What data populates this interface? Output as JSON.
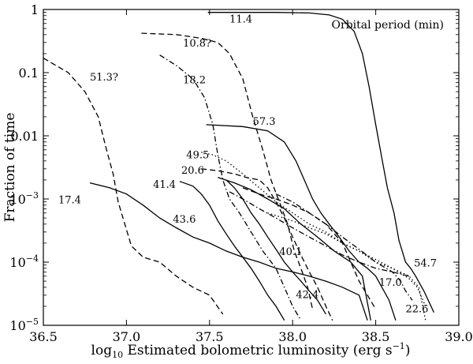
{
  "chart_data": {
    "type": "line",
    "xlabel_parts": [
      "log",
      "10",
      " Estimated bolometric luminosity (erg s",
      "−1",
      ")"
    ],
    "ylabel": "Fraction of time",
    "legend_title": "Orbital period (min)",
    "xlim": [
      36.5,
      39.0
    ],
    "ylim": [
      1e-05,
      1
    ],
    "y_scale": "log",
    "x_ticks": [
      {
        "value": 36.5,
        "label": "36.5"
      },
      {
        "value": 37.0,
        "label": "37.0"
      },
      {
        "value": 37.5,
        "label": "37.5"
      },
      {
        "value": 38.0,
        "label": "38.0"
      },
      {
        "value": 38.5,
        "label": "38.5"
      },
      {
        "value": 39.0,
        "label": "39.0"
      }
    ],
    "y_ticks": [
      {
        "value": 1,
        "base": "1",
        "exp": ""
      },
      {
        "value": 0.1,
        "base": "0.1",
        "exp": ""
      },
      {
        "value": 0.01,
        "base": "0.01",
        "exp": ""
      },
      {
        "value": 0.001,
        "base": "10",
        "exp": "−3"
      },
      {
        "value": 0.0001,
        "base": "10",
        "exp": "−4"
      },
      {
        "value": 1e-05,
        "base": "10",
        "exp": "−5"
      }
    ],
    "series": [
      {
        "name": "11.4",
        "dash": "solid",
        "label_at": [
          37.62,
          0.62
        ],
        "points": [
          [
            37.49,
            0.9
          ],
          [
            37.9,
            0.9
          ],
          [
            38.1,
            0.88
          ],
          [
            38.22,
            0.82
          ],
          [
            38.3,
            0.7
          ],
          [
            38.37,
            0.45
          ],
          [
            38.42,
            0.2
          ],
          [
            38.46,
            0.06
          ],
          [
            38.5,
            0.015
          ],
          [
            38.54,
            0.004
          ],
          [
            38.57,
            0.0015
          ],
          [
            38.61,
            0.0006
          ],
          [
            38.64,
            0.00022
          ],
          [
            38.68,
            0.0001
          ],
          [
            38.71,
            8e-05
          ],
          [
            38.74,
            6e-05
          ],
          [
            38.79,
            3.5e-05
          ],
          [
            38.85,
            1.6e-05
          ]
        ]
      },
      {
        "name": "10.8?",
        "dash": "dashed",
        "label_at": [
          37.34,
          0.26
        ],
        "points": [
          [
            37.09,
            0.42
          ],
          [
            37.3,
            0.4
          ],
          [
            37.45,
            0.35
          ],
          [
            37.55,
            0.3
          ],
          [
            37.62,
            0.2
          ],
          [
            37.7,
            0.08
          ],
          [
            37.76,
            0.02
          ],
          [
            37.82,
            0.006
          ],
          [
            37.87,
            0.002
          ],
          [
            37.92,
            0.0009
          ],
          [
            37.97,
            0.0004
          ],
          [
            38.01,
            0.00015
          ],
          [
            38.05,
            8e-05
          ],
          [
            38.09,
            4e-05
          ],
          [
            38.12,
            1.8e-05
          ]
        ]
      },
      {
        "name": "51.3?",
        "dash": "dashed",
        "label_at": [
          36.78,
          0.075
        ],
        "points": [
          [
            36.5,
            0.17
          ],
          [
            36.65,
            0.1
          ],
          [
            36.75,
            0.05
          ],
          [
            36.83,
            0.02
          ],
          [
            36.88,
            0.006
          ],
          [
            36.92,
            0.0025
          ],
          [
            36.95,
            0.0009
          ],
          [
            36.99,
            0.0004
          ],
          [
            37.03,
            0.00018
          ],
          [
            37.1,
            0.00012
          ],
          [
            37.2,
            0.0001
          ],
          [
            37.3,
            6e-05
          ],
          [
            37.4,
            4e-05
          ],
          [
            37.5,
            3e-05
          ],
          [
            37.58,
            1.5e-05
          ]
        ]
      },
      {
        "name": "18.2",
        "dash": "dashdot",
        "label_at": [
          37.34,
          0.068
        ],
        "points": [
          [
            37.2,
            0.19
          ],
          [
            37.3,
            0.13
          ],
          [
            37.4,
            0.08
          ],
          [
            37.47,
            0.04
          ],
          [
            37.52,
            0.015
          ],
          [
            37.55,
            0.005
          ],
          [
            37.58,
            0.002
          ],
          [
            37.62,
            0.001
          ],
          [
            37.68,
            0.0006
          ],
          [
            37.75,
            0.0003
          ],
          [
            37.82,
            0.00015
          ],
          [
            37.9,
            8e-05
          ],
          [
            37.95,
            4e-05
          ],
          [
            38.0,
            2e-05
          ],
          [
            38.05,
            1.2e-05
          ]
        ]
      },
      {
        "name": "57.3",
        "dash": "solid",
        "label_at": [
          37.76,
          0.015
        ],
        "points": [
          [
            37.48,
            0.015
          ],
          [
            37.7,
            0.014
          ],
          [
            37.85,
            0.012
          ],
          [
            37.95,
            0.008
          ],
          [
            38.02,
            0.004
          ],
          [
            38.07,
            0.002
          ],
          [
            38.12,
            0.001
          ],
          [
            38.17,
            0.0006
          ],
          [
            38.22,
            0.0004
          ],
          [
            38.28,
            0.00025
          ],
          [
            38.34,
            0.00015
          ],
          [
            38.4,
            0.0001
          ],
          [
            38.45,
            8e-05
          ],
          [
            38.5,
            6e-05
          ],
          [
            38.58,
            2.5e-05
          ],
          [
            38.62,
            1.2e-05
          ]
        ]
      },
      {
        "name": "49.5",
        "dash": "dotted",
        "label_at": [
          37.36,
          0.0044
        ],
        "points": [
          [
            37.45,
            0.0055
          ],
          [
            37.52,
            0.005
          ],
          [
            37.6,
            0.004
          ],
          [
            37.7,
            0.0025
          ],
          [
            37.8,
            0.0015
          ],
          [
            37.9,
            0.0009
          ],
          [
            38.0,
            0.0006
          ],
          [
            38.1,
            0.0004
          ],
          [
            38.2,
            0.0003
          ],
          [
            38.3,
            0.0002
          ],
          [
            38.4,
            0.00015
          ],
          [
            38.5,
            0.0001
          ],
          [
            38.6,
            8e-05
          ],
          [
            38.7,
            6e-05
          ],
          [
            38.76,
            4e-05
          ],
          [
            38.8,
            1.2e-05
          ]
        ]
      },
      {
        "name": "20.6",
        "dash": "dashed",
        "label_at": [
          37.33,
          0.0025
        ],
        "points": [
          [
            37.45,
            0.003
          ],
          [
            37.55,
            0.0028
          ],
          [
            37.65,
            0.0025
          ],
          [
            37.72,
            0.0022
          ],
          [
            37.8,
            0.002
          ],
          [
            37.85,
            0.0015
          ],
          [
            37.9,
            0.0009
          ],
          [
            37.95,
            0.0005
          ],
          [
            38.0,
            0.00025
          ],
          [
            38.05,
            0.00013
          ],
          [
            38.1,
            7e-05
          ],
          [
            38.15,
            4e-05
          ],
          [
            38.2,
            2e-05
          ],
          [
            38.24,
            1.2e-05
          ]
        ]
      },
      {
        "name": "41.4",
        "dash": "solid",
        "label_at": [
          37.16,
          0.0015
        ],
        "points": [
          [
            37.32,
            0.0019
          ],
          [
            37.4,
            0.0016
          ],
          [
            37.45,
            0.0012
          ],
          [
            37.5,
            0.0008
          ],
          [
            37.55,
            0.00045
          ],
          [
            37.6,
            0.00028
          ],
          [
            37.65,
            0.00018
          ],
          [
            37.7,
            0.00012
          ],
          [
            37.75,
            8e-05
          ],
          [
            37.8,
            5e-05
          ],
          [
            37.85,
            3e-05
          ],
          [
            37.9,
            2e-05
          ],
          [
            37.95,
            1.2e-05
          ]
        ]
      },
      {
        "name": "17.4",
        "dash": "solid",
        "label_at": [
          36.59,
          0.00085
        ],
        "points": [
          [
            36.78,
            0.0018
          ],
          [
            36.9,
            0.0015
          ],
          [
            37.0,
            0.0012
          ],
          [
            37.1,
            0.0008
          ],
          [
            37.2,
            0.0005
          ],
          [
            37.3,
            0.00035
          ],
          [
            37.4,
            0.00025
          ],
          [
            37.5,
            0.0002
          ],
          [
            37.6,
            0.00015
          ],
          [
            37.7,
            0.00012
          ],
          [
            37.8,
            0.0001
          ],
          [
            37.9,
            8e-05
          ],
          [
            38.0,
            7e-05
          ],
          [
            38.1,
            6e-05
          ],
          [
            38.2,
            5e-05
          ],
          [
            38.3,
            4e-05
          ],
          [
            38.4,
            3e-05
          ],
          [
            38.45,
            1.2e-05
          ]
        ]
      },
      {
        "name": "43.6",
        "dash": "solid",
        "label_at": [
          37.28,
          0.00042
        ],
        "points": [
          [
            37.6,
            0.002
          ],
          [
            37.65,
            0.0015
          ],
          [
            37.7,
            0.001
          ],
          [
            37.75,
            0.0006
          ],
          [
            37.8,
            0.0004
          ],
          [
            37.85,
            0.00025
          ],
          [
            37.9,
            0.00016
          ],
          [
            37.95,
            0.0001
          ],
          [
            38.0,
            7e-05
          ],
          [
            38.05,
            5e-05
          ],
          [
            38.1,
            3.5e-05
          ],
          [
            38.15,
            2.5e-05
          ],
          [
            38.2,
            1.5e-05
          ]
        ]
      },
      {
        "name": "40.1",
        "dash": "dashdot",
        "label_at": [
          37.92,
          0.00013
        ],
        "points": [
          [
            37.62,
            0.0013
          ],
          [
            37.7,
            0.001
          ],
          [
            37.8,
            0.0007
          ],
          [
            37.9,
            0.0005
          ],
          [
            38.0,
            0.00035
          ],
          [
            38.1,
            0.00025
          ],
          [
            38.2,
            0.00018
          ],
          [
            38.3,
            0.00013
          ],
          [
            38.4,
            0.0001
          ],
          [
            38.5,
            8e-05
          ],
          [
            38.6,
            7e-05
          ],
          [
            38.7,
            6e-05
          ]
        ]
      },
      {
        "name": "42.4",
        "dash": "dashed",
        "label_at": [
          38.02,
          2.7e-05
        ],
        "points": [
          [
            37.7,
            0.0015
          ],
          [
            37.8,
            0.0012
          ],
          [
            37.9,
            0.001
          ],
          [
            38.0,
            0.0008
          ],
          [
            38.1,
            0.0006
          ],
          [
            38.2,
            0.0004
          ],
          [
            38.3,
            0.0002
          ],
          [
            38.35,
            0.0001
          ],
          [
            38.4,
            5e-05
          ],
          [
            38.45,
            3e-05
          ],
          [
            38.5,
            1.8e-05
          ]
        ]
      },
      {
        "name": "54.7",
        "dash": "dashdot",
        "label_at": [
          38.73,
          8.5e-05
        ],
        "points": [
          [
            37.9,
            0.0012
          ],
          [
            38.0,
            0.0009
          ],
          [
            38.1,
            0.0006
          ],
          [
            38.2,
            0.0004
          ],
          [
            38.3,
            0.00025
          ],
          [
            38.4,
            0.00016
          ],
          [
            38.5,
            0.0001
          ],
          [
            38.6,
            7e-05
          ],
          [
            38.65,
            5e-05
          ],
          [
            38.68,
            3.5e-05
          ],
          [
            38.72,
            2.5e-05
          ]
        ]
      },
      {
        "name": "17.0",
        "dash": "solid",
        "label_at": [
          38.52,
          4.2e-05
        ],
        "points": [
          [
            37.55,
            0.0022
          ],
          [
            37.65,
            0.0018
          ],
          [
            37.75,
            0.0014
          ],
          [
            37.85,
            0.001
          ],
          [
            37.95,
            0.0007
          ],
          [
            38.05,
            0.0004
          ],
          [
            38.15,
            0.00025
          ],
          [
            38.25,
            0.00015
          ],
          [
            38.35,
            0.0001
          ],
          [
            38.42,
            6e-05
          ],
          [
            38.47,
            1.2e-05
          ]
        ]
      },
      {
        "name": "22.6",
        "dash": "dotted",
        "label_at": [
          38.68,
          1.6e-05
        ],
        "points": [
          [
            37.85,
            0.0006
          ],
          [
            38.0,
            0.00045
          ],
          [
            38.1,
            0.00035
          ],
          [
            38.2,
            0.00028
          ],
          [
            38.3,
            0.0002
          ],
          [
            38.4,
            0.00015
          ],
          [
            38.5,
            0.00011
          ],
          [
            38.6,
            8e-05
          ],
          [
            38.7,
            5.5e-05
          ],
          [
            38.75,
            4e-05
          ],
          [
            38.8,
            2e-05
          ]
        ]
      }
    ]
  }
}
